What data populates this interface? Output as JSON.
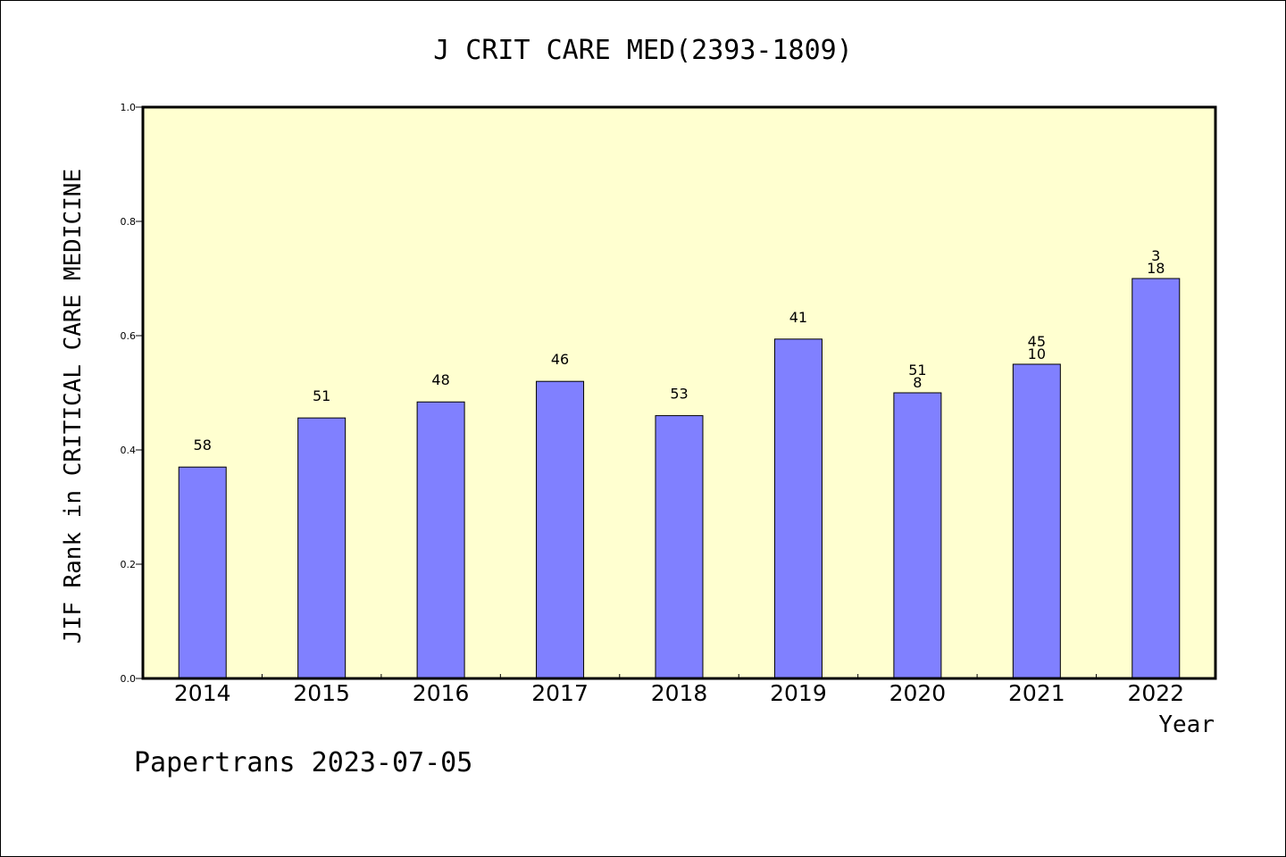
{
  "chart_data": {
    "type": "bar",
    "title": "J CRIT CARE MED(2393-1809)",
    "xlabel": "Year",
    "ylabel": "JIF Rank in CRITICAL CARE MEDICINE",
    "ylim": [
      0,
      1
    ],
    "yticks": [
      "0.0",
      "0.2",
      "0.4",
      "0.6",
      "0.8",
      "1.0"
    ],
    "categories": [
      "2014",
      "2015",
      "2016",
      "2017",
      "2018",
      "2019",
      "2020",
      "2021",
      "2022"
    ],
    "values": [
      0.37,
      0.456,
      0.484,
      0.52,
      0.46,
      0.594,
      0.5,
      0.55,
      0.7
    ],
    "labels": [
      [
        "58"
      ],
      [
        "51"
      ],
      [
        "48"
      ],
      [
        "46"
      ],
      [
        "53"
      ],
      [
        "41"
      ],
      [
        "51",
        "8"
      ],
      [
        "45",
        "10"
      ],
      [
        "3",
        "18"
      ]
    ],
    "colors": {
      "plot_bg": "#ffffd0",
      "bar": "#8080ff",
      "bar_edge": "#000000"
    },
    "grid": false,
    "legend": "none"
  },
  "footer": {
    "text": "Papertrans 2023-07-05"
  }
}
